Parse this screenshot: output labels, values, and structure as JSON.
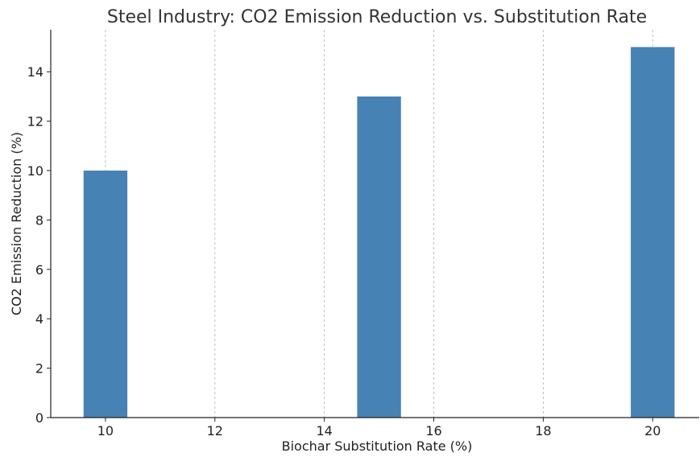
{
  "chart_data": {
    "type": "bar",
    "title": "Steel Industry: CO2 Emission Reduction vs. Substitution Rate",
    "xlabel": "Biochar Substitution Rate (%)",
    "ylabel": "CO2 Emission Reduction (%)",
    "x": [
      10,
      15,
      20
    ],
    "values": [
      10,
      13,
      15
    ],
    "bar_width": 0.8,
    "xlim": [
      9,
      20.85
    ],
    "ylim": [
      0,
      15.7
    ],
    "xticks": [
      10,
      12,
      14,
      16,
      18,
      20
    ],
    "yticks": [
      0,
      2,
      4,
      6,
      8,
      10,
      12,
      14
    ],
    "grid": "x-dashed",
    "bar_color": "#4682b4"
  }
}
